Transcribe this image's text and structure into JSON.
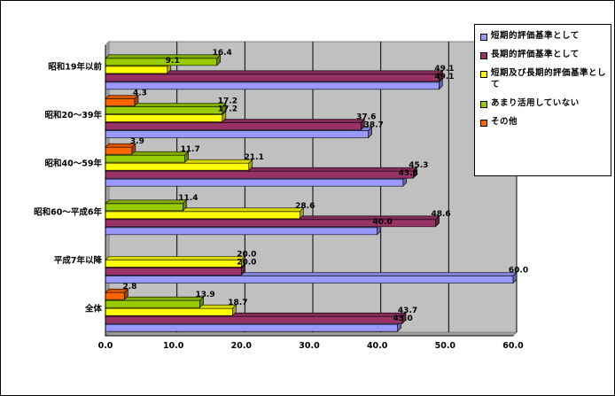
{
  "chart_data": {
    "type": "bar",
    "orientation": "horizontal",
    "categories": [
      "昭和19年以前",
      "昭和20～39年",
      "昭和40～59年",
      "昭和60～平成6年",
      "平成7年以降",
      "全体"
    ],
    "series": [
      {
        "name": "短期的評価基準として",
        "color": "#9999ff",
        "values": [
          49.1,
          38.7,
          43.8,
          40.0,
          60.0,
          43.0
        ]
      },
      {
        "name": "長期的評価基準として",
        "color": "#993366",
        "values": [
          49.1,
          37.6,
          45.3,
          48.6,
          20.0,
          43.7
        ]
      },
      {
        "name": "短期及び長期的評価基準として",
        "color": "#ffff00",
        "values": [
          9.1,
          17.2,
          21.1,
          28.6,
          20.0,
          18.7
        ]
      },
      {
        "name": "あまり活用していない",
        "color": "#99cc00",
        "values": [
          16.4,
          17.2,
          11.7,
          11.4,
          null,
          13.9
        ]
      },
      {
        "name": "その他",
        "color": "#ff6600",
        "values": [
          null,
          4.3,
          3.9,
          null,
          null,
          2.8
        ]
      }
    ],
    "value_labels": [
      [
        "49.1",
        "49.1",
        "9.1",
        "16.4",
        ""
      ],
      [
        "38.7",
        "37.6",
        "17.2",
        "17.2",
        "4.3"
      ],
      [
        "43.8",
        "45.3",
        "21.1",
        "11.7",
        "3.9"
      ],
      [
        "40.0",
        "48.6",
        "28.6",
        "11.4",
        ""
      ],
      [
        "60.0",
        "20.0",
        "20.0",
        "",
        ""
      ],
      [
        "43.0",
        "43.7",
        "18.7",
        "13.9",
        "2.8"
      ]
    ],
    "xlim": [
      0,
      60
    ],
    "x_ticks": [
      "0.0",
      "10.0",
      "20.0",
      "30.0",
      "40.0",
      "50.0",
      "60.0"
    ],
    "grid": true,
    "plot_background": "#c0c0c0",
    "legend_position": "right"
  }
}
